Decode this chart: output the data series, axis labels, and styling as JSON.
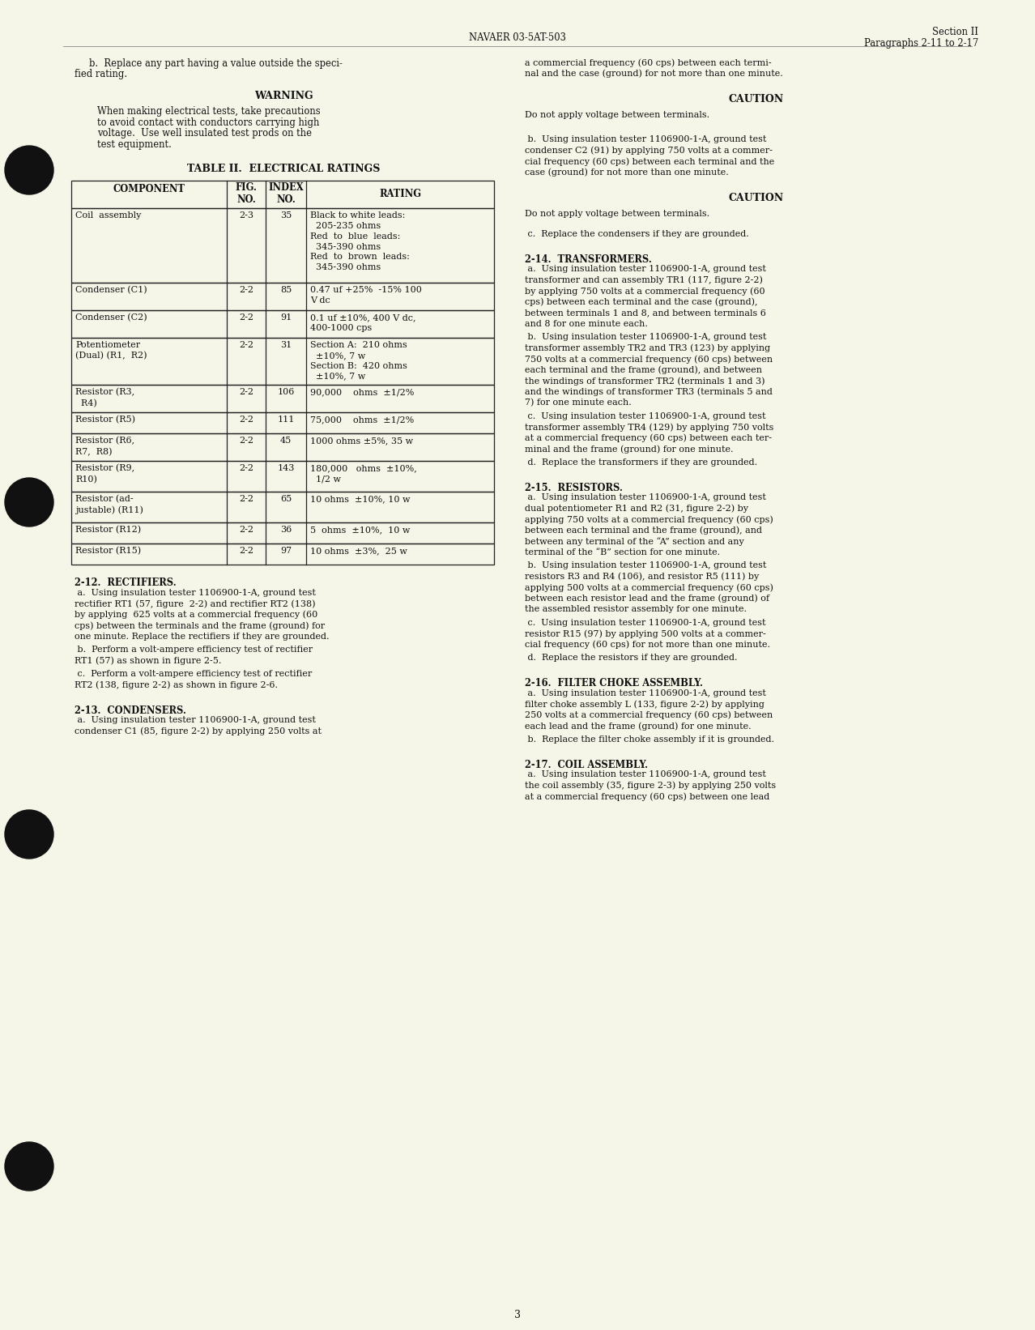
{
  "page_color": "#F5F5E8",
  "header_center": "NAVAER 03-5AT-503",
  "header_right_line1": "Section II",
  "header_right_line2": "Paragraphs 2-11 to 2-17",
  "page_number": "3",
  "table_title": "TABLE II.  ELECTRICAL RATINGS",
  "table_headers": [
    "COMPONENT",
    "FIG.\nNO.",
    "INDEX\nNO.",
    "RATING"
  ],
  "table_rows": [
    [
      "Coil  assembly",
      "2-3",
      "35",
      "Black to white leads:\n  205-235 ohms\nRed  to  blue  leads:\n  345-390 ohms\nRed  to  brown  leads:\n  345-390 ohms"
    ],
    [
      "Condenser (C1)",
      "2-2",
      "85",
      "0.47 uf +25%  -15% 100\nV dc"
    ],
    [
      "Condenser (C2)",
      "2-2",
      "91",
      "0.1 uf ±10%, 400 V dc,\n400-1000 cps"
    ],
    [
      "Potentiometer\n(Dual) (R1,  R2)",
      "2-2",
      "31",
      "Section A:  210 ohms\n  ±10%, 7 w\nSection B:  420 ohms\n  ±10%, 7 w"
    ],
    [
      "Resistor (R3,\n  R4)",
      "2-2",
      "106",
      "90,000    ohms  ±1/2%"
    ],
    [
      "Resistor (R5)",
      "2-2",
      "111",
      "75,000    ohms  ±1/2%"
    ],
    [
      "Resistor (R6,\nR7,  R8)",
      "2-2",
      "45",
      "1000 ohms ±5%, 35 w"
    ],
    [
      "Resistor (R9,\nR10)",
      "2-2",
      "143",
      "180,000   ohms  ±10%,\n  1/2 w"
    ],
    [
      "Resistor (ad-\njustable) (R11)",
      "2-2",
      "65",
      "10 ohms  ±10%, 10 w"
    ],
    [
      "Resistor (R12)",
      "2-2",
      "36",
      "5  ohms  ±10%,  10 w"
    ],
    [
      "Resistor (R15)",
      "2-2",
      "97",
      "10 ohms  ±3%,  25 w"
    ]
  ],
  "left_body": [
    {
      "type": "heading",
      "text": "2-12.  RECTIFIERS."
    },
    {
      "type": "para",
      "text": " a.  Using insulation tester 1106900-1-A, ground test\nrectifier RT1 (57, figure  2-2) and rectifier RT2 (138)\nby applying  625 volts at a commercial frequency (60\ncps) between the terminals and the frame (ground) for\none minute. Replace the rectifiers if they are grounded."
    },
    {
      "type": "para",
      "text": " b.  Perform a volt-ampere efficiency test of rectifier\nRT1 (57) as shown in figure 2-5."
    },
    {
      "type": "para",
      "text": " c.  Perform a volt-ampere efficiency test of rectifier\nRT2 (138, figure 2-2) as shown in figure 2-6."
    },
    {
      "type": "spacer"
    },
    {
      "type": "heading",
      "text": "2-13.  CONDENSERS."
    },
    {
      "type": "para",
      "text": " a.  Using insulation tester 1106900-1-A, ground test\ncondenser C1 (85, figure 2-2) by applying 250 volts at"
    }
  ],
  "right_body": [
    {
      "type": "para",
      "text": "a commercial frequency (60 cps) between each termi-\nnal and the case (ground) for not more than one minute."
    },
    {
      "type": "spacer"
    },
    {
      "type": "center_heading",
      "text": "CAUTION"
    },
    {
      "type": "spacer_small"
    },
    {
      "type": "para",
      "text": "Do not apply voltage between terminals."
    },
    {
      "type": "spacer"
    },
    {
      "type": "para",
      "text": " b.  Using insulation tester 1106900-1-A, ground test\ncondenser C2 (91) by applying 750 volts at a commer-\ncial frequency (60 cps) between each terminal and the\ncase (ground) for not more than one minute."
    },
    {
      "type": "spacer"
    },
    {
      "type": "center_heading",
      "text": "CAUTION"
    },
    {
      "type": "spacer_small"
    },
    {
      "type": "para",
      "text": "Do not apply voltage between terminals."
    },
    {
      "type": "spacer_small"
    },
    {
      "type": "para",
      "text": " c.  Replace the condensers if they are grounded."
    },
    {
      "type": "spacer"
    },
    {
      "type": "heading",
      "text": "2-14.  TRANSFORMERS."
    },
    {
      "type": "para",
      "text": " a.  Using insulation tester 1106900-1-A, ground test\ntransformer and can assembly TR1 (117, figure 2-2)\nby applying 750 volts at a commercial frequency (60\ncps) between each terminal and the case (ground),\nbetween terminals 1 and 8, and between terminals 6\nand 8 for one minute each."
    },
    {
      "type": "para",
      "text": " b.  Using insulation tester 1106900-1-A, ground test\ntransformer assembly TR2 and TR3 (123) by applying\n750 volts at a commercial frequency (60 cps) between\neach terminal and the frame (ground), and between\nthe windings of transformer TR2 (terminals 1 and 3)\nand the windings of transformer TR3 (terminals 5 and\n7) for one minute each."
    },
    {
      "type": "para",
      "text": " c.  Using insulation tester 1106900-1-A, ground test\ntransformer assembly TR4 (129) by applying 750 volts\nat a commercial frequency (60 cps) between each ter-\nminal and the frame (ground) for one minute."
    },
    {
      "type": "para",
      "text": " d.  Replace the transformers if they are grounded."
    },
    {
      "type": "spacer"
    },
    {
      "type": "heading",
      "text": "2-15.  RESISTORS."
    },
    {
      "type": "para",
      "text": " a.  Using insulation tester 1106900-1-A, ground test\ndual potentiometer R1 and R2 (31, figure 2-2) by\napplying 750 volts at a commercial frequency (60 cps)\nbetween each terminal and the frame (ground), and\nbetween any terminal of the “A” section and any\nterminal of the “B” section for one minute."
    },
    {
      "type": "para",
      "text": " b.  Using insulation tester 1106900-1-A, ground test\nresistors R3 and R4 (106), and resistor R5 (111) by\napplying 500 volts at a commercial frequency (60 cps)\nbetween each resistor lead and the frame (ground) of\nthe assembled resistor assembly for one minute."
    },
    {
      "type": "para",
      "text": " c.  Using insulation tester 1106900-1-A, ground test\nresistor R15 (97) by applying 500 volts at a commer-\ncial frequency (60 cps) for not more than one minute."
    },
    {
      "type": "para",
      "text": " d.  Replace the resistors if they are grounded."
    },
    {
      "type": "spacer"
    },
    {
      "type": "heading",
      "text": "2-16.  FILTER CHOKE ASSEMBLY."
    },
    {
      "type": "para",
      "text": " a.  Using insulation tester 1106900-1-A, ground test\nfilter choke assembly L (133, figure 2-2) by applying\n250 volts at a commercial frequency (60 cps) between\neach lead and the frame (ground) for one minute."
    },
    {
      "type": "para",
      "text": " b.  Replace the filter choke assembly if it is grounded."
    },
    {
      "type": "spacer"
    },
    {
      "type": "heading",
      "text": "2-17.  COIL ASSEMBLY."
    },
    {
      "type": "para",
      "text": " a.  Using insulation tester 1106900-1-A, ground test\nthe coil assembly (35, figure 2-3) by applying 250 volts\nat a commercial frequency (60 cps) between one lead"
    }
  ]
}
